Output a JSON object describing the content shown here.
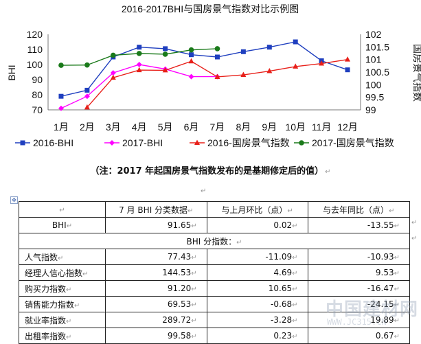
{
  "chart_data": {
    "type": "line",
    "title": "2016-2017BHI与国房景气指数对比示例图",
    "categories": [
      "1月",
      "2月",
      "3月",
      "4月",
      "5月",
      "6月",
      "7月",
      "8月",
      "9月",
      "10月",
      "11月",
      "12月"
    ],
    "ylabel_left": "BHI",
    "ylabel_right": "国房景气指数",
    "ylim_left": [
      70,
      120
    ],
    "ylim_right": [
      99,
      102
    ],
    "yticks_left": [
      "70",
      "80",
      "90",
      "100",
      "110",
      "120"
    ],
    "yticks_right": [
      "99",
      "99.5",
      "100",
      "100.5",
      "101",
      "101.5",
      "102"
    ],
    "grid": false,
    "legend": "bottom",
    "series": [
      {
        "name": "2016-BHI",
        "axis": "left",
        "marker": "square",
        "color": "#1f3fbf",
        "values": [
          79,
          83,
          105,
          111.5,
          110.5,
          106.5,
          105,
          108.5,
          111.5,
          115,
          102.5,
          96.5
        ]
      },
      {
        "name": "2017-BHI",
        "axis": "left",
        "marker": "diamond",
        "color": "#ff00ff",
        "values": [
          71,
          79,
          94.5,
          100,
          97,
          92,
          92,
          null,
          null,
          null,
          null,
          null
        ]
      },
      {
        "name": "2016-国房景气指数",
        "axis": "right",
        "marker": "triangle",
        "color": "#e8201a",
        "values": [
          null,
          99.1,
          100.28,
          100.58,
          100.57,
          100.93,
          100.31,
          100.39,
          100.54,
          100.72,
          100.84,
          101.0
        ]
      },
      {
        "name": "2017-国房景气指数",
        "axis": "right",
        "marker": "circle",
        "color": "#1a7a1a",
        "values": [
          100.77,
          100.78,
          101.17,
          101.24,
          101.21,
          101.38,
          101.43,
          null,
          null,
          null,
          null,
          null
        ]
      }
    ]
  },
  "note": {
    "text": "（注：2017 年起国房景气指数发布的是基期修定后的值）",
    "return_mark": "↵"
  },
  "table": {
    "return_mark": "↵",
    "move_handle": "✥",
    "header": [
      "",
      "7 月 BHI 分类数据",
      "与上月环比（点）",
      "与去年同比（点）"
    ],
    "bhi_row": {
      "label": "BHI",
      "c1": "91.65",
      "c2": "0.02",
      "c3": "-13.55"
    },
    "section_label": "BHI 分指数：",
    "rows": [
      {
        "label": "人气指数",
        "c1": "77.43",
        "c2": "-11.09",
        "c3": "-10.93"
      },
      {
        "label": "经理人信心指数",
        "c1": "144.53",
        "c2": "4.69",
        "c3": "9.53"
      },
      {
        "label": "购买力指数",
        "c1": "91.20",
        "c2": "10.65",
        "c3": "-16.47"
      },
      {
        "label": "销售能力指数",
        "c1": "69.53",
        "c2": "-0.68",
        "c3": "-24.15"
      },
      {
        "label": "就业率指数",
        "c1": "289.72",
        "c2": "-3.28",
        "c3": "19.89"
      },
      {
        "label": "出租率指数",
        "c1": "99.58",
        "c2": "0.23",
        "c3": "0.67"
      }
    ]
  },
  "watermark": {
    "line1": "中国建材网",
    "line2": "WWW.JC315.CN"
  }
}
